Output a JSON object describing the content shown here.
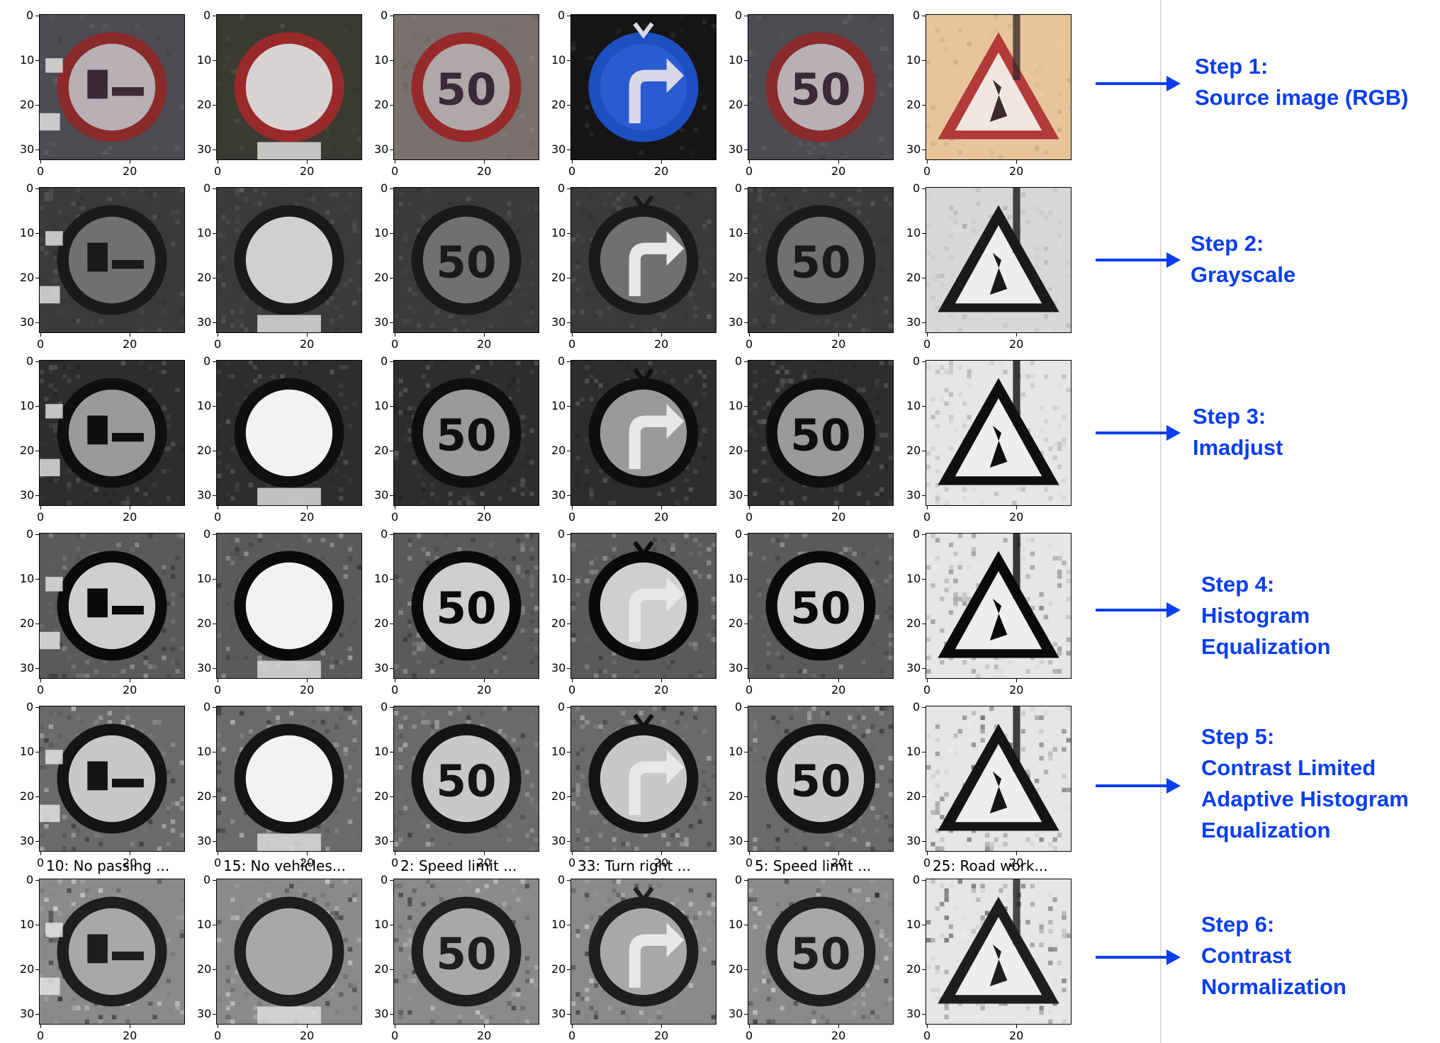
{
  "axis": {
    "y_ticks": [
      "0",
      "10",
      "20",
      "30"
    ],
    "x_ticks": [
      "0",
      "20"
    ]
  },
  "column_titles": [
    "10: No passing ...",
    "15: No vehicles...",
    "2: Speed limit ...",
    "33: Turn right ...",
    "5: Speed limit ...",
    "25: Road work..."
  ],
  "column_signs": [
    "no-passing",
    "no-vehicles",
    "speed-limit-50",
    "turn-right",
    "speed-limit-50",
    "road-work"
  ],
  "rows": [
    {
      "step_lines": [
        "Step 1:",
        "Source image (RGB)"
      ],
      "style": "rgb"
    },
    {
      "step_lines": [
        "Step 2:",
        "Grayscale"
      ],
      "style": "gray"
    },
    {
      "step_lines": [
        "Step 3:",
        "Imadjust"
      ],
      "style": "adjust"
    },
    {
      "step_lines": [
        "Step 4:",
        "Histogram",
        "Equalization"
      ],
      "style": "histeq"
    },
    {
      "step_lines": [
        "Step 5:",
        "Contrast Limited",
        "Adaptive Histogram",
        "Equalization"
      ],
      "style": "clahe"
    },
    {
      "step_lines": [
        "Step 6:",
        "Contrast",
        "Normalization"
      ],
      "style": "norm"
    }
  ],
  "colors": {
    "arrow": "#0a3ef0",
    "step_text": "#0a3ef0",
    "divider": "#dcdcdc"
  }
}
